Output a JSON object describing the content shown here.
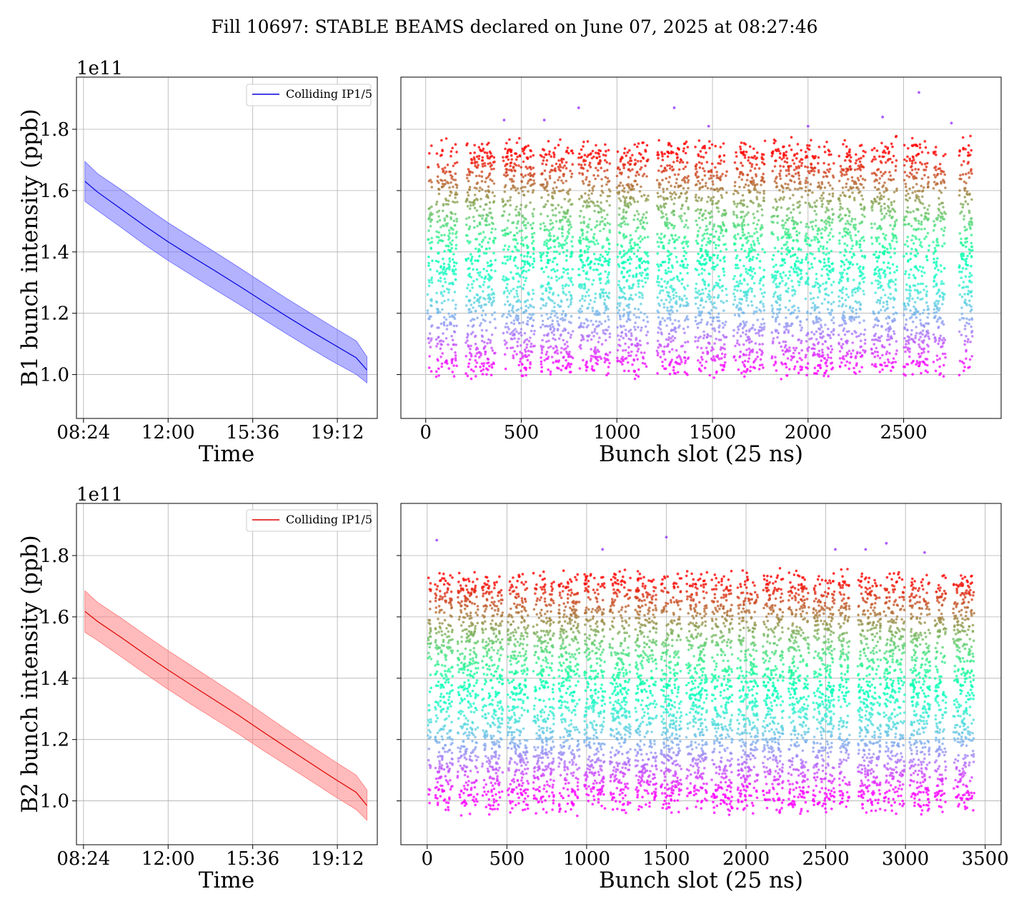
{
  "suptitle": "Fill 10697: STABLE BEAMS declared on June 07, 2025 at 08:27:46",
  "chart_data": [
    {
      "id": "b1-time",
      "type": "line",
      "ylabel": "B1 bunch intensity (ppb)",
      "xlabel": "Time",
      "y_offset_label": "1e11",
      "legend": {
        "entries": [
          "Colliding IP1/5"
        ],
        "placement": "upper right"
      },
      "x_ticks": [
        "08:24",
        "12:00",
        "15:36",
        "19:12"
      ],
      "x_tick_hours": [
        8.4,
        12.0,
        15.6,
        19.2
      ],
      "xlim_hours": [
        8.1,
        20.9
      ],
      "y_ticks": [
        "1.0",
        "1.2",
        "1.4",
        "1.6",
        "1.8"
      ],
      "y_tick_values": [
        1.0,
        1.2,
        1.4,
        1.6,
        1.8
      ],
      "ylim": [
        0.857,
        1.97
      ],
      "grid": true,
      "color": "#0000dd",
      "fill_color": "#6666ff",
      "series": [
        {
          "name": "Colliding IP1/5",
          "x_hours": [
            8.46,
            9.0,
            10.0,
            11.0,
            12.0,
            13.0,
            14.0,
            15.0,
            16.0,
            17.0,
            18.0,
            19.0,
            20.0,
            20.46
          ],
          "mean": [
            1.63,
            1.595,
            1.54,
            1.485,
            1.433,
            1.385,
            1.338,
            1.29,
            1.241,
            1.192,
            1.145,
            1.1,
            1.055,
            1.015
          ],
          "upper": [
            1.695,
            1.655,
            1.603,
            1.548,
            1.495,
            1.447,
            1.399,
            1.35,
            1.3,
            1.25,
            1.203,
            1.156,
            1.11,
            1.058
          ],
          "lower": [
            1.565,
            1.535,
            1.48,
            1.424,
            1.372,
            1.324,
            1.277,
            1.23,
            1.183,
            1.135,
            1.088,
            1.043,
            1.001,
            0.973
          ]
        }
      ]
    },
    {
      "id": "b1-slot",
      "type": "scatter",
      "xlabel": "Bunch slot (25 ns)",
      "x_ticks": [
        "0",
        "500",
        "1000",
        "1500",
        "2000",
        "2500"
      ],
      "x_tick_values": [
        0,
        500,
        1000,
        1500,
        2000,
        2500
      ],
      "xlim": [
        -130,
        3010
      ],
      "ylim": [
        0.857,
        1.97
      ],
      "grid": true,
      "colormap": "rainbow",
      "trains": [
        [
          10,
          35
        ],
        [
          55,
          165
        ],
        [
          210,
          365
        ],
        [
          400,
          570
        ],
        [
          600,
          770
        ],
        [
          800,
          965
        ],
        [
          1000,
          1165
        ],
        [
          1210,
          1375
        ],
        [
          1410,
          1575
        ],
        [
          1610,
          1775
        ],
        [
          1810,
          1970
        ],
        [
          1985,
          2135
        ],
        [
          2160,
          2300
        ],
        [
          2330,
          2465
        ],
        [
          2500,
          2635
        ],
        [
          2655,
          2720
        ],
        [
          2790,
          2860
        ]
      ],
      "intensity_range": [
        0.96,
        1.82
      ],
      "max_points": [
        [
          2580,
          1.92
        ],
        [
          2750,
          1.82
        ],
        [
          1300,
          1.87
        ],
        [
          800,
          1.87
        ],
        [
          410,
          1.83
        ],
        [
          620,
          1.83
        ],
        [
          1480,
          1.81
        ],
        [
          2000,
          1.81
        ],
        [
          2390,
          1.84
        ]
      ]
    },
    {
      "id": "b2-time",
      "type": "line",
      "ylabel": "B2 bunch intensity (ppb)",
      "xlabel": "Time",
      "y_offset_label": "1e11",
      "legend": {
        "entries": [
          "Colliding IP1/5"
        ],
        "placement": "upper right"
      },
      "x_ticks": [
        "08:24",
        "12:00",
        "15:36",
        "19:12"
      ],
      "x_tick_hours": [
        8.4,
        12.0,
        15.6,
        19.2
      ],
      "xlim_hours": [
        8.1,
        20.9
      ],
      "y_ticks": [
        "1.0",
        "1.2",
        "1.4",
        "1.6",
        "1.8"
      ],
      "y_tick_values": [
        1.0,
        1.2,
        1.4,
        1.6,
        1.8
      ],
      "ylim": [
        0.857,
        1.97
      ],
      "grid": true,
      "color": "#dd0000",
      "fill_color": "#ff7777",
      "series": [
        {
          "name": "Colliding IP1/5",
          "x_hours": [
            8.46,
            9.0,
            10.0,
            11.0,
            12.0,
            13.0,
            14.0,
            15.0,
            16.0,
            17.0,
            18.0,
            19.0,
            20.0,
            20.46
          ],
          "mean": [
            1.618,
            1.585,
            1.533,
            1.479,
            1.427,
            1.377,
            1.328,
            1.279,
            1.227,
            1.176,
            1.126,
            1.076,
            1.028,
            0.985
          ],
          "upper": [
            1.685,
            1.647,
            1.596,
            1.542,
            1.49,
            1.44,
            1.39,
            1.34,
            1.287,
            1.234,
            1.183,
            1.133,
            1.084,
            1.035
          ],
          "lower": [
            1.55,
            1.523,
            1.47,
            1.416,
            1.364,
            1.314,
            1.266,
            1.218,
            1.167,
            1.118,
            1.069,
            1.019,
            0.972,
            0.937
          ]
        }
      ]
    },
    {
      "id": "b2-slot",
      "type": "scatter",
      "xlabel": "Bunch slot (25 ns)",
      "x_ticks": [
        "0",
        "500",
        "1000",
        "1500",
        "2000",
        "2500",
        "3000",
        "3500"
      ],
      "x_tick_values": [
        0,
        500,
        1000,
        1500,
        2000,
        2500,
        3000,
        3500
      ],
      "xlim": [
        -165,
        3600
      ],
      "ylim": [
        0.857,
        1.97
      ],
      "grid": true,
      "colormap": "rainbow",
      "trains": [
        [
          5,
          25
        ],
        [
          50,
          160
        ],
        [
          190,
          320
        ],
        [
          345,
          475
        ],
        [
          505,
          635
        ],
        [
          665,
          795
        ],
        [
          825,
          955
        ],
        [
          985,
          1115
        ],
        [
          1145,
          1275
        ],
        [
          1305,
          1440
        ],
        [
          1465,
          1595
        ],
        [
          1625,
          1755
        ],
        [
          1785,
          1915
        ],
        [
          1945,
          2075
        ],
        [
          2105,
          2235
        ],
        [
          2265,
          2395
        ],
        [
          2420,
          2555
        ],
        [
          2580,
          2650
        ],
        [
          2700,
          2845
        ],
        [
          2865,
          2995
        ],
        [
          3025,
          3155
        ],
        [
          3185,
          3255
        ],
        [
          3300,
          3430
        ]
      ],
      "intensity_range": [
        0.93,
        1.8
      ],
      "max_points": [
        [
          60,
          1.85
        ],
        [
          1500,
          1.86
        ],
        [
          2880,
          1.84
        ],
        [
          3120,
          1.81
        ],
        [
          2750,
          1.82
        ],
        [
          2560,
          1.82
        ],
        [
          1100,
          1.82
        ]
      ]
    }
  ]
}
